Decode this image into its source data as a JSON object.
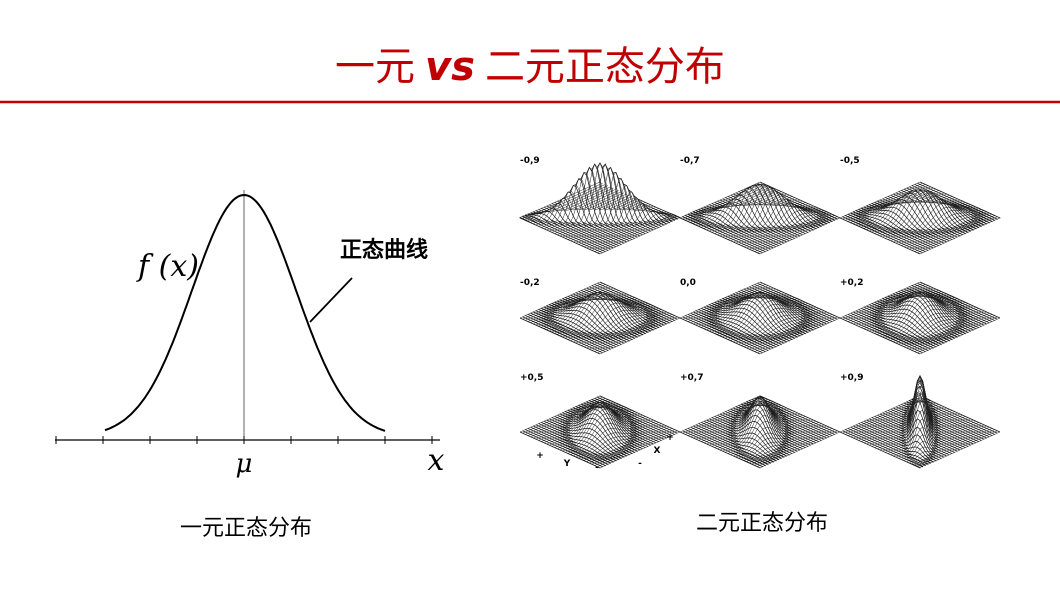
{
  "title": {
    "part1": "一元",
    "vs": "vs",
    "part2": "二元正态分布"
  },
  "left": {
    "function_label": "f (x)",
    "curve_label": "正态曲线",
    "mean_label": "μ",
    "axis_label": "x",
    "caption": "一元正态分布"
  },
  "right": {
    "panels": [
      {
        "label": "-0,9",
        "value": -0.9
      },
      {
        "label": "-0,7",
        "value": -0.7
      },
      {
        "label": "-0,5",
        "value": -0.5
      },
      {
        "label": "-0,2",
        "value": -0.2
      },
      {
        "label": "0,0",
        "value": 0
      },
      {
        "label": "+0,2",
        "value": 0.2
      },
      {
        "label": "+0,5",
        "value": 0.5
      },
      {
        "label": "+0,7",
        "value": 0.7
      },
      {
        "label": "+0,9",
        "value": 0.9
      }
    ],
    "axis_marks": [
      "+",
      "Y",
      "-",
      "-",
      "X",
      "+"
    ],
    "caption": "二元正态分布"
  }
}
